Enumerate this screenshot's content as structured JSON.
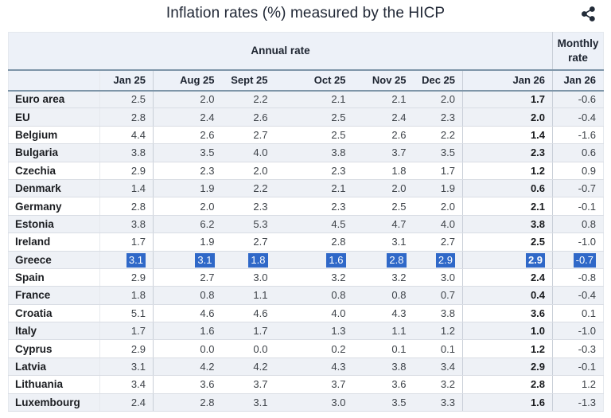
{
  "title": "Inflation rates (%) measured by the HICP",
  "toolbar": {
    "share_icon": "share"
  },
  "table": {
    "annual_group_label": "Annual rate",
    "monthly_group_label": "Monthly rate",
    "columns": [
      "",
      "Jan 25",
      "Aug 25",
      "Sept 25",
      "Oct 25",
      "Nov 25",
      "Dec 25",
      "Jan 26",
      "Jan 26"
    ]
  },
  "chart_data": {
    "type": "table",
    "title": "Inflation rates (%) measured by the HICP",
    "column_groups": [
      {
        "label": "Annual rate",
        "span": 7
      },
      {
        "label": "Monthly rate",
        "span": 1
      }
    ],
    "columns": [
      "Jan 25",
      "Aug 25",
      "Sept 25",
      "Oct 25",
      "Nov 25",
      "Dec 25",
      "Jan 26",
      "Jan 26"
    ],
    "highlighted_row": "Greece",
    "rows": [
      {
        "label": "Euro area",
        "values": [
          "2.5",
          "2.0",
          "2.2",
          "2.1",
          "2.1",
          "2.0",
          "1.7",
          "-0.6"
        ],
        "selected": false
      },
      {
        "label": "EU",
        "values": [
          "2.8",
          "2.4",
          "2.6",
          "2.5",
          "2.4",
          "2.3",
          "2.0",
          "-0.4"
        ],
        "selected": false
      },
      {
        "label": "Belgium",
        "values": [
          "4.4",
          "2.6",
          "2.7",
          "2.5",
          "2.6",
          "2.2",
          "1.4",
          "-1.6"
        ],
        "selected": false
      },
      {
        "label": "Bulgaria",
        "values": [
          "3.8",
          "3.5",
          "4.0",
          "3.8",
          "3.7",
          "3.5",
          "2.3",
          "0.6"
        ],
        "selected": false
      },
      {
        "label": "Czechia",
        "values": [
          "2.9",
          "2.3",
          "2.0",
          "2.3",
          "1.8",
          "1.7",
          "1.2",
          "0.9"
        ],
        "selected": false
      },
      {
        "label": "Denmark",
        "values": [
          "1.4",
          "1.9",
          "2.2",
          "2.1",
          "2.0",
          "1.9",
          "0.6",
          "-0.7"
        ],
        "selected": false
      },
      {
        "label": "Germany",
        "values": [
          "2.8",
          "2.0",
          "2.3",
          "2.3",
          "2.5",
          "2.0",
          "2.1",
          "-0.1"
        ],
        "selected": false
      },
      {
        "label": "Estonia",
        "values": [
          "3.8",
          "6.2",
          "5.3",
          "4.5",
          "4.7",
          "4.0",
          "3.8",
          "0.8"
        ],
        "selected": false
      },
      {
        "label": "Ireland",
        "values": [
          "1.7",
          "1.9",
          "2.7",
          "2.8",
          "3.1",
          "2.7",
          "2.5",
          "-1.0"
        ],
        "selected": false
      },
      {
        "label": "Greece",
        "values": [
          "3.1",
          "3.1",
          "1.8",
          "1.6",
          "2.8",
          "2.9",
          "2.9",
          "-0.7"
        ],
        "selected": true
      },
      {
        "label": "Spain",
        "values": [
          "2.9",
          "2.7",
          "3.0",
          "3.2",
          "3.2",
          "3.0",
          "2.4",
          "-0.8"
        ],
        "selected": false
      },
      {
        "label": "France",
        "values": [
          "1.8",
          "0.8",
          "1.1",
          "0.8",
          "0.8",
          "0.7",
          "0.4",
          "-0.4"
        ],
        "selected": false
      },
      {
        "label": "Croatia",
        "values": [
          "5.1",
          "4.6",
          "4.6",
          "4.0",
          "4.3",
          "3.8",
          "3.6",
          "0.1"
        ],
        "selected": false
      },
      {
        "label": "Italy",
        "values": [
          "1.7",
          "1.6",
          "1.7",
          "1.3",
          "1.1",
          "1.2",
          "1.0",
          "-1.0"
        ],
        "selected": false
      },
      {
        "label": "Cyprus",
        "values": [
          "2.9",
          "0.0",
          "0.0",
          "0.2",
          "0.1",
          "0.1",
          "1.2",
          "-0.3"
        ],
        "selected": false
      },
      {
        "label": "Latvia",
        "values": [
          "3.1",
          "4.2",
          "4.2",
          "4.3",
          "3.8",
          "3.4",
          "2.9",
          "-0.1"
        ],
        "selected": false
      },
      {
        "label": "Lithuania",
        "values": [
          "3.4",
          "3.6",
          "3.7",
          "3.7",
          "3.6",
          "3.2",
          "2.8",
          "1.2"
        ],
        "selected": false
      },
      {
        "label": "Luxembourg",
        "values": [
          "2.4",
          "2.8",
          "3.1",
          "3.0",
          "3.5",
          "3.3",
          "1.6",
          "-1.3"
        ],
        "selected": false
      }
    ]
  },
  "colors": {
    "selection_blue": "#2f68c8",
    "header_bg": "#edf1f8",
    "row_stripe": "#eef1f6",
    "divider_strong": "#7e95a8",
    "divider_light": "#c9cfd8",
    "icon": "#222b38"
  }
}
